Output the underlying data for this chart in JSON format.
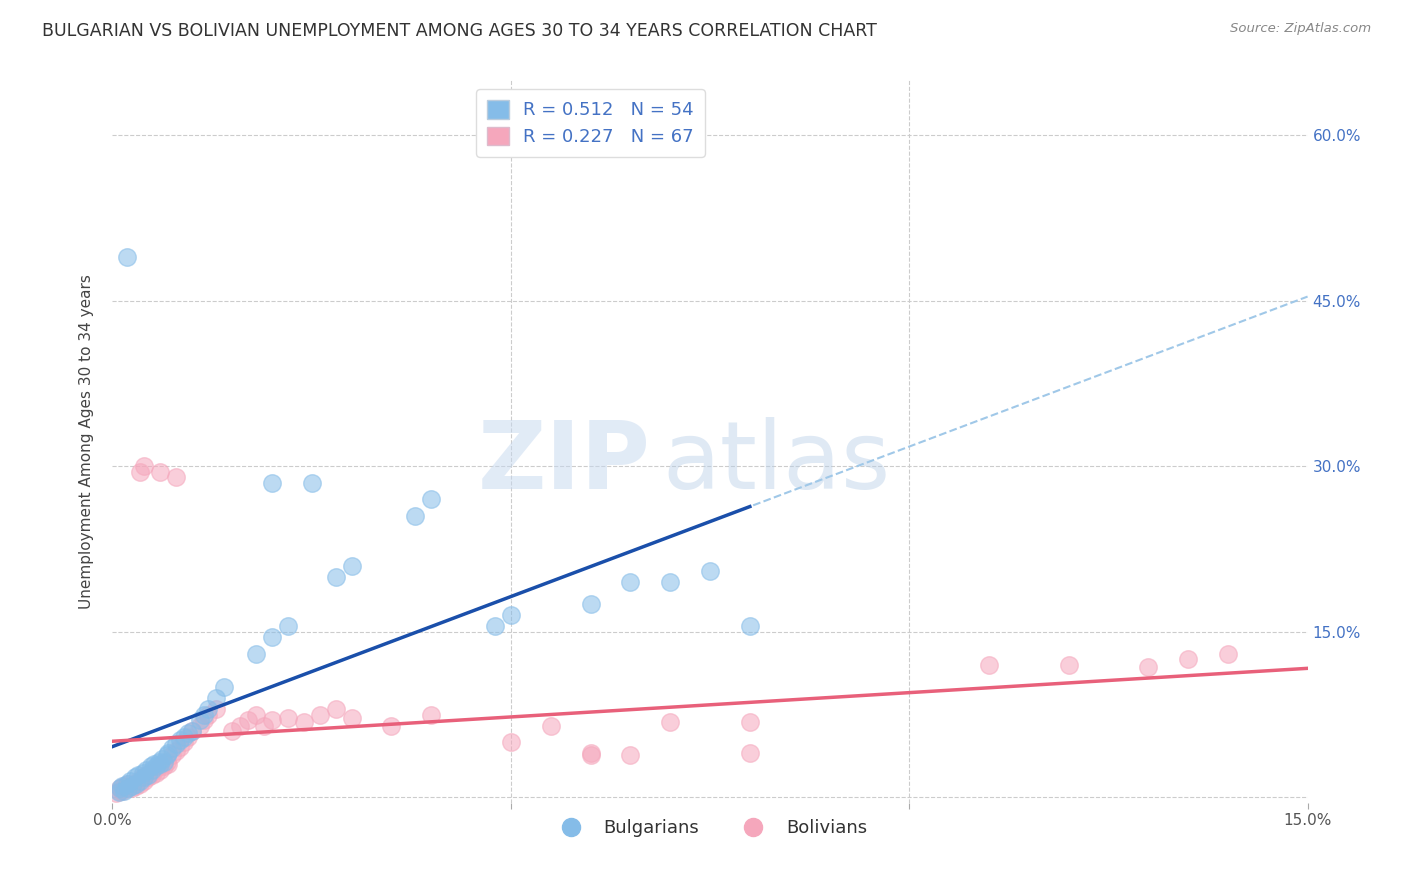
{
  "title": "BULGARIAN VS BOLIVIAN UNEMPLOYMENT AMONG AGES 30 TO 34 YEARS CORRELATION CHART",
  "source": "Source: ZipAtlas.com",
  "ylabel": "Unemployment Among Ages 30 to 34 years",
  "xlim": [
    0,
    0.15
  ],
  "ylim": [
    -0.005,
    0.65
  ],
  "xticks": [
    0.0,
    0.05,
    0.1,
    0.15
  ],
  "xticklabels": [
    "0.0%",
    "",
    "",
    "15.0%"
  ],
  "yticks": [
    0.0,
    0.15,
    0.3,
    0.45,
    0.6
  ],
  "yticklabels": [
    "",
    "15.0%",
    "30.0%",
    "45.0%",
    "60.0%"
  ],
  "bg_color": "#ffffff",
  "grid_color": "#cccccc",
  "blue_color": "#85bce8",
  "pink_color": "#f5a7bc",
  "blue_line_color": "#1a4faa",
  "pink_line_color": "#e8607a",
  "dashed_line_color": "#a0c8e8",
  "title_color": "#333333",
  "source_color": "#888888",
  "tick_color": "#4472c4",
  "blue_R": 0.512,
  "blue_N": 54,
  "pink_R": 0.227,
  "pink_N": 67,
  "watermark_zip": "ZIP",
  "watermark_atlas": "atlas",
  "legend_bulgarians": "Bulgarians",
  "legend_bolivians": "Bolivians",
  "blue_scatter_x": [
    0.0008,
    0.001,
    0.0012,
    0.0015,
    0.0018,
    0.002,
    0.0022,
    0.0025,
    0.0028,
    0.003,
    0.0032,
    0.0035,
    0.0038,
    0.004,
    0.0042,
    0.0045,
    0.0048,
    0.005,
    0.0052,
    0.0055,
    0.0058,
    0.006,
    0.0062,
    0.0065,
    0.0068,
    0.007,
    0.0075,
    0.008,
    0.0085,
    0.009,
    0.0095,
    0.01,
    0.011,
    0.0115,
    0.012,
    0.013,
    0.014,
    0.018,
    0.02,
    0.022,
    0.028,
    0.03,
    0.038,
    0.04,
    0.048,
    0.05,
    0.06,
    0.065,
    0.07,
    0.075,
    0.08,
    0.02,
    0.025,
    0.0018
  ],
  "blue_scatter_y": [
    0.005,
    0.008,
    0.01,
    0.006,
    0.012,
    0.008,
    0.015,
    0.01,
    0.018,
    0.012,
    0.02,
    0.015,
    0.022,
    0.018,
    0.025,
    0.02,
    0.028,
    0.025,
    0.03,
    0.028,
    0.032,
    0.03,
    0.035,
    0.032,
    0.038,
    0.04,
    0.045,
    0.048,
    0.052,
    0.055,
    0.058,
    0.06,
    0.07,
    0.075,
    0.08,
    0.09,
    0.1,
    0.13,
    0.145,
    0.155,
    0.2,
    0.21,
    0.255,
    0.27,
    0.155,
    0.165,
    0.175,
    0.195,
    0.195,
    0.205,
    0.155,
    0.285,
    0.285,
    0.49
  ],
  "pink_scatter_x": [
    0.0005,
    0.0008,
    0.001,
    0.0012,
    0.0015,
    0.0018,
    0.002,
    0.0022,
    0.0025,
    0.0028,
    0.003,
    0.0032,
    0.0035,
    0.0038,
    0.004,
    0.0042,
    0.0045,
    0.0048,
    0.005,
    0.0052,
    0.0055,
    0.0058,
    0.006,
    0.0062,
    0.0065,
    0.0068,
    0.007,
    0.0075,
    0.008,
    0.0085,
    0.009,
    0.0095,
    0.01,
    0.011,
    0.0115,
    0.012,
    0.013,
    0.015,
    0.016,
    0.017,
    0.018,
    0.019,
    0.02,
    0.022,
    0.024,
    0.026,
    0.028,
    0.03,
    0.035,
    0.04,
    0.05,
    0.055,
    0.07,
    0.08,
    0.11,
    0.12,
    0.13,
    0.135,
    0.14,
    0.06,
    0.065,
    0.06,
    0.08,
    0.004,
    0.006,
    0.008,
    0.0035
  ],
  "pink_scatter_y": [
    0.004,
    0.006,
    0.008,
    0.006,
    0.01,
    0.008,
    0.012,
    0.01,
    0.008,
    0.012,
    0.01,
    0.015,
    0.012,
    0.018,
    0.015,
    0.02,
    0.018,
    0.022,
    0.02,
    0.025,
    0.022,
    0.028,
    0.025,
    0.03,
    0.028,
    0.032,
    0.03,
    0.038,
    0.042,
    0.046,
    0.05,
    0.055,
    0.06,
    0.065,
    0.07,
    0.075,
    0.08,
    0.06,
    0.065,
    0.07,
    0.075,
    0.065,
    0.07,
    0.072,
    0.068,
    0.075,
    0.08,
    0.072,
    0.065,
    0.075,
    0.05,
    0.065,
    0.068,
    0.068,
    0.12,
    0.12,
    0.118,
    0.125,
    0.13,
    0.04,
    0.038,
    0.038,
    0.04,
    0.3,
    0.295,
    0.29,
    0.295
  ]
}
